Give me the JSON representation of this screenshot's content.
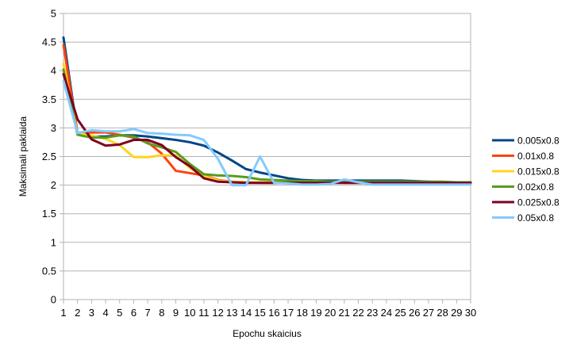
{
  "chart_data": {
    "type": "line",
    "title": "",
    "xlabel": "Epochu skaicius",
    "ylabel": "Maksimali paklaida",
    "x": [
      1,
      2,
      3,
      4,
      5,
      6,
      7,
      8,
      9,
      10,
      11,
      12,
      13,
      14,
      15,
      16,
      17,
      18,
      19,
      20,
      21,
      22,
      23,
      24,
      25,
      26,
      27,
      28,
      29,
      30
    ],
    "xticks": [
      "1",
      "2",
      "3",
      "4",
      "5",
      "6",
      "7",
      "8",
      "9",
      "10",
      "11",
      "12",
      "13",
      "14",
      "15",
      "16",
      "17",
      "18",
      "19",
      "20",
      "21",
      "22",
      "23",
      "24",
      "25",
      "26",
      "27",
      "28",
      "29",
      "30"
    ],
    "yticks": [
      "0",
      "0.5",
      "1",
      "1.5",
      "2",
      "2.5",
      "3",
      "3.5",
      "4",
      "4.5",
      "5"
    ],
    "ylim": [
      0,
      5
    ],
    "grid": "horizontal",
    "legend": "right",
    "series": [
      {
        "name": "0.005x0.8",
        "color": "#004586",
        "values": [
          4.58,
          2.9,
          2.85,
          2.85,
          2.87,
          2.87,
          2.85,
          2.82,
          2.79,
          2.75,
          2.69,
          2.57,
          2.43,
          2.28,
          2.22,
          2.17,
          2.12,
          2.09,
          2.08,
          2.08,
          2.08,
          2.08,
          2.08,
          2.08,
          2.08,
          2.07,
          2.06,
          2.05,
          2.05,
          2.05
        ]
      },
      {
        "name": "0.01x0.8",
        "color": "#ff420e",
        "values": [
          4.45,
          2.9,
          2.92,
          2.92,
          2.88,
          2.83,
          2.75,
          2.55,
          2.25,
          2.21,
          2.17,
          2.09,
          2.06,
          2.05,
          2.04,
          2.04,
          2.04,
          2.05,
          2.06,
          2.05,
          2.04,
          2.04,
          2.04,
          2.04,
          2.04,
          2.04,
          2.04,
          2.04,
          2.04,
          2.04
        ]
      },
      {
        "name": "0.015x0.8",
        "color": "#ffd320",
        "values": [
          4.12,
          2.9,
          2.87,
          2.81,
          2.7,
          2.49,
          2.49,
          2.52,
          2.52,
          2.3,
          2.16,
          2.08,
          2.06,
          2.05,
          2.05,
          2.05,
          2.05,
          2.05,
          2.05,
          2.05,
          2.05,
          2.05,
          2.05,
          2.05,
          2.05,
          2.05,
          2.05,
          2.05,
          2.05,
          2.05
        ]
      },
      {
        "name": "0.02x0.8",
        "color": "#579d1c",
        "values": [
          4.02,
          2.88,
          2.83,
          2.83,
          2.87,
          2.85,
          2.73,
          2.66,
          2.58,
          2.37,
          2.19,
          2.17,
          2.16,
          2.14,
          2.1,
          2.09,
          2.08,
          2.07,
          2.07,
          2.06,
          2.06,
          2.06,
          2.06,
          2.06,
          2.06,
          2.06,
          2.06,
          2.06,
          2.05,
          2.05
        ]
      },
      {
        "name": "0.025x0.8",
        "color": "#7e0021",
        "values": [
          3.94,
          3.15,
          2.8,
          2.69,
          2.71,
          2.79,
          2.79,
          2.7,
          2.49,
          2.33,
          2.12,
          2.06,
          2.05,
          2.04,
          2.04,
          2.04,
          2.04,
          2.04,
          2.04,
          2.04,
          2.04,
          2.04,
          2.04,
          2.04,
          2.04,
          2.04,
          2.04,
          2.04,
          2.04,
          2.04
        ]
      },
      {
        "name": "0.05x0.8",
        "color": "#83caff",
        "values": [
          3.82,
          2.91,
          2.96,
          2.94,
          2.94,
          2.98,
          2.91,
          2.9,
          2.88,
          2.87,
          2.79,
          2.46,
          2.0,
          2.0,
          2.5,
          2.04,
          2.03,
          2.01,
          2.01,
          2.02,
          2.1,
          2.05,
          2.01,
          2.01,
          2.01,
          2.01,
          2.01,
          2.01,
          2.01,
          2.01
        ]
      }
    ]
  }
}
